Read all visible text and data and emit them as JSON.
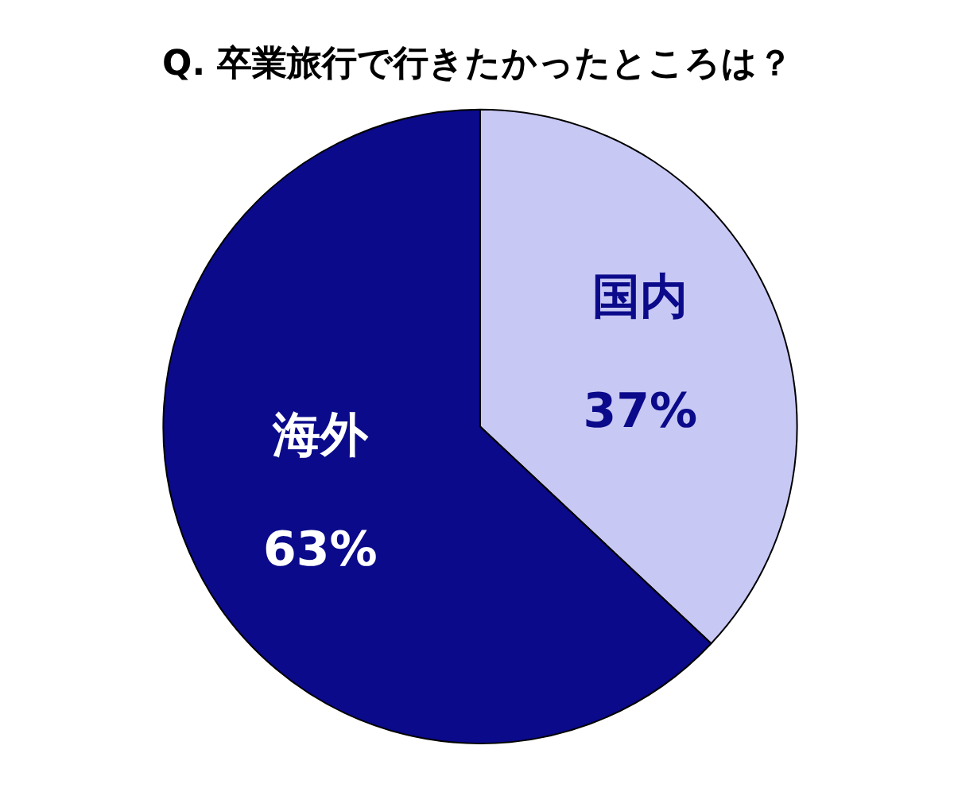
{
  "chart_data": {
    "type": "pie",
    "title": "Q. 卒業旅行で行きたかったところは？",
    "categories": [
      "国内",
      "海外"
    ],
    "values": [
      37,
      63
    ],
    "value_labels": [
      "37%",
      "63%"
    ],
    "colors": [
      "#c8c8f5",
      "#0a0a8a"
    ],
    "legend": false
  }
}
